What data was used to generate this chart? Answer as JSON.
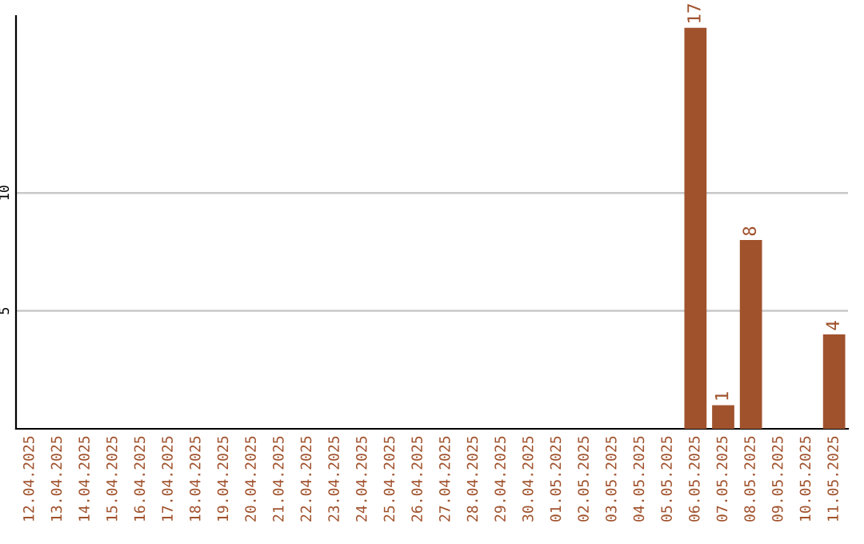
{
  "chart_data": {
    "type": "bar",
    "categories": [
      "12.04.2025",
      "13.04.2025",
      "14.04.2025",
      "15.04.2025",
      "16.04.2025",
      "17.04.2025",
      "18.04.2025",
      "19.04.2025",
      "20.04.2025",
      "21.04.2025",
      "22.04.2025",
      "23.04.2025",
      "24.04.2025",
      "25.04.2025",
      "26.04.2025",
      "27.04.2025",
      "28.04.2025",
      "29.04.2025",
      "30.04.2025",
      "01.05.2025",
      "02.05.2025",
      "03.05.2025",
      "04.05.2025",
      "05.05.2025",
      "06.05.2025",
      "07.05.2025",
      "08.05.2025",
      "09.05.2025",
      "10.05.2025",
      "11.05.2025"
    ],
    "values": [
      0,
      0,
      0,
      0,
      0,
      0,
      0,
      0,
      0,
      0,
      0,
      0,
      0,
      0,
      0,
      0,
      0,
      0,
      0,
      0,
      0,
      0,
      0,
      0,
      17,
      1,
      8,
      0,
      0,
      4
    ],
    "value_labels": [
      null,
      null,
      null,
      null,
      null,
      null,
      null,
      null,
      null,
      null,
      null,
      null,
      null,
      null,
      null,
      null,
      null,
      null,
      null,
      null,
      null,
      null,
      null,
      null,
      "17",
      "1",
      "8",
      null,
      null,
      "4"
    ],
    "color": "#a0522d",
    "ylim": [
      0,
      17.5
    ],
    "yticks": [
      5,
      10
    ],
    "grid": "y",
    "legend": false
  }
}
